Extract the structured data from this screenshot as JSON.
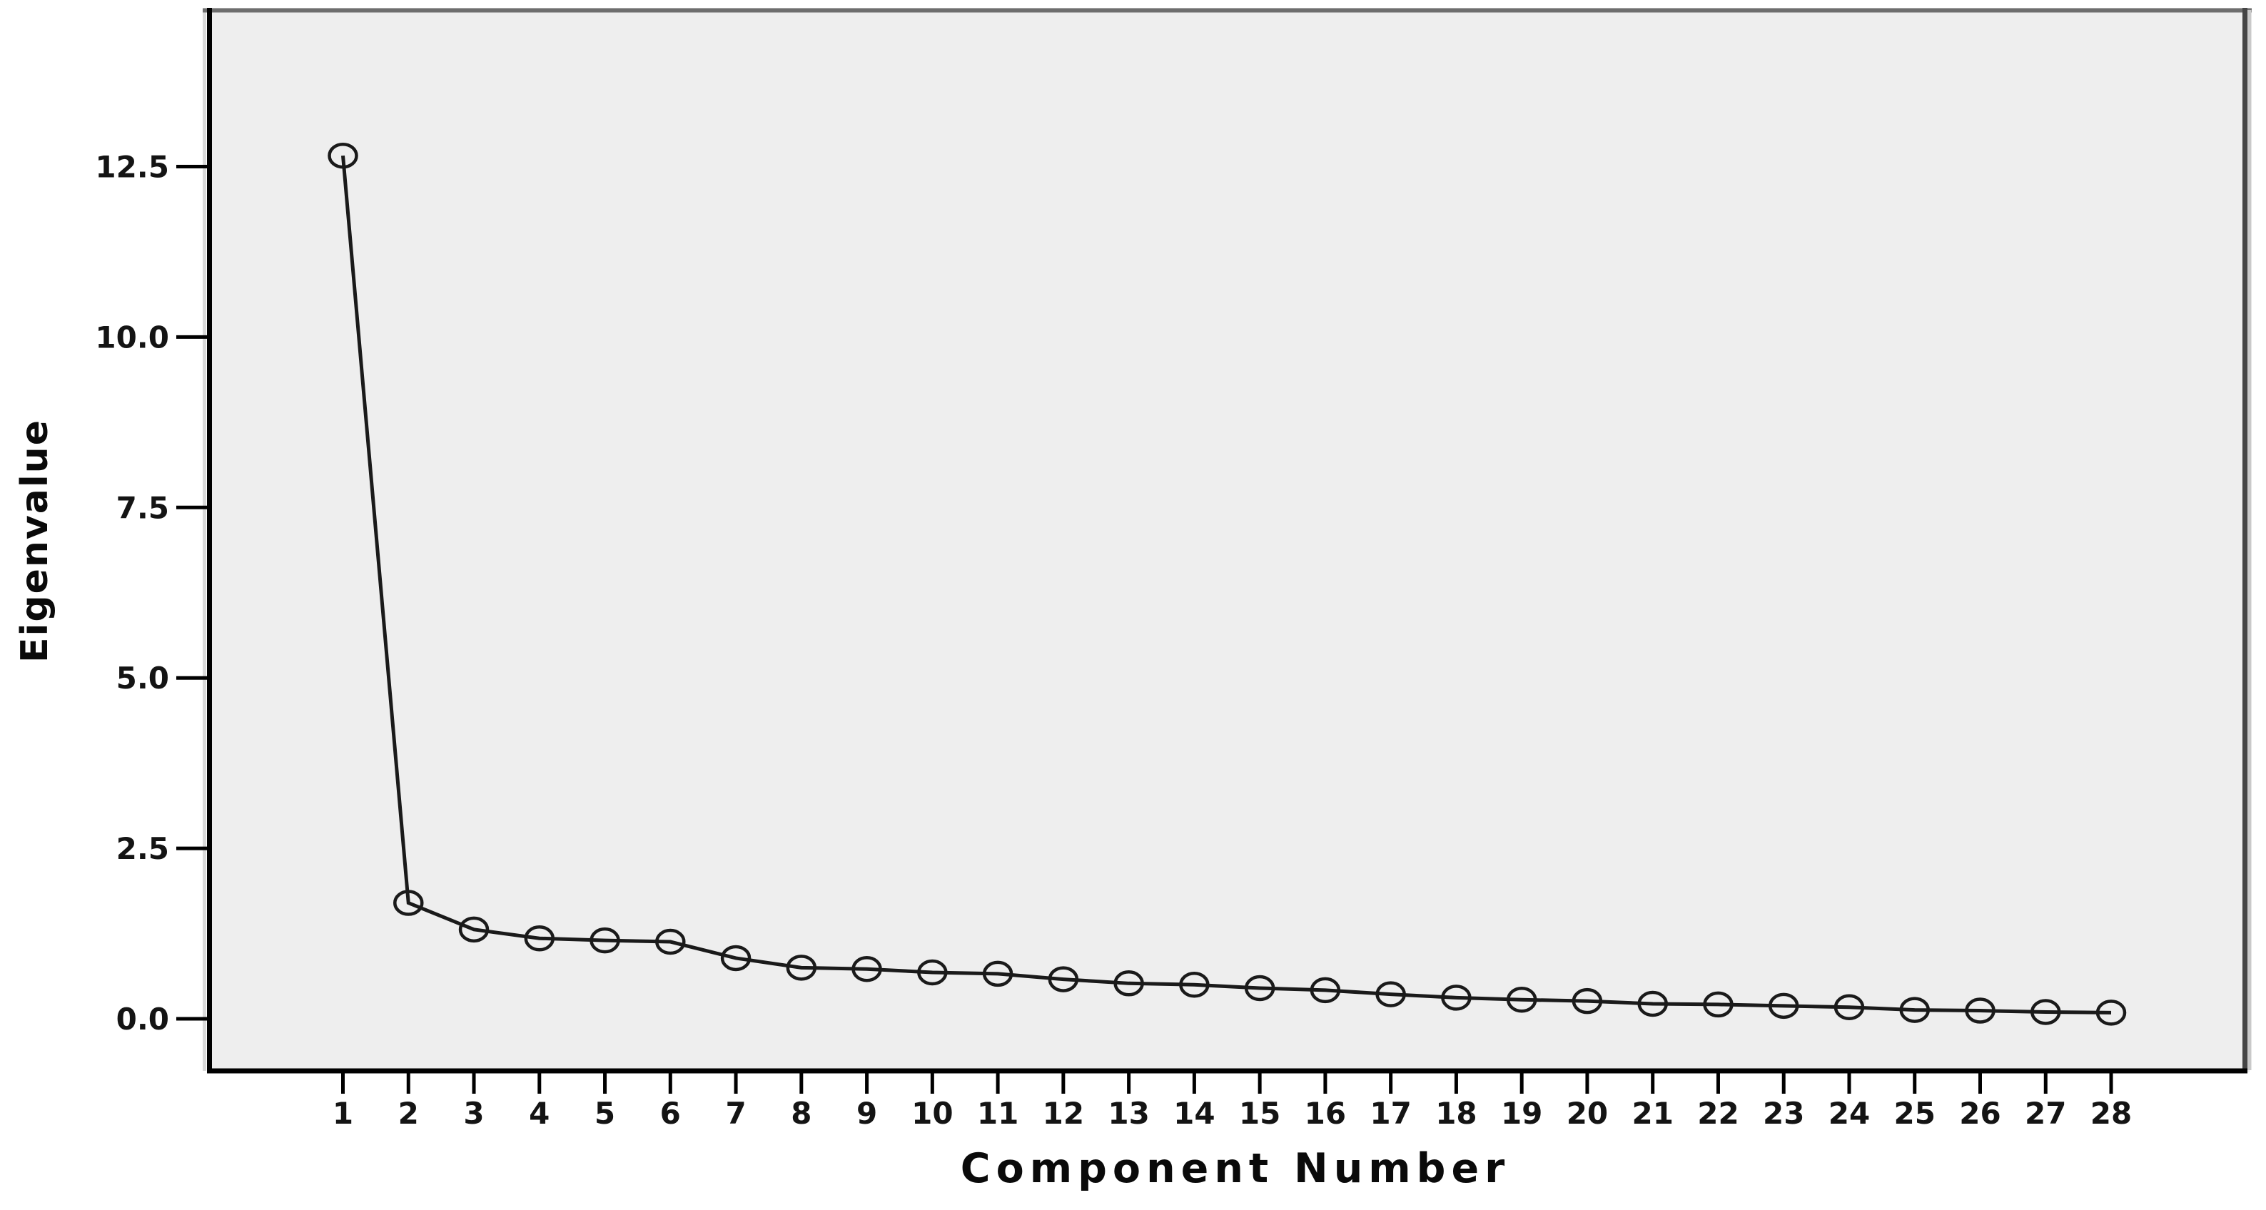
{
  "page": {
    "background_color": "#ffffff",
    "description": "Scree plot of eigenvalues by component number"
  },
  "chart_data": {
    "type": "line",
    "title": "",
    "xlabel": "Component Number",
    "ylabel": "Eigenvalue",
    "grid": false,
    "legend": "none",
    "marker": "open-circle",
    "series": [
      {
        "name": "Eigenvalue",
        "x": [
          1,
          2,
          3,
          4,
          5,
          6,
          7,
          8,
          9,
          10,
          11,
          12,
          13,
          14,
          15,
          16,
          17,
          18,
          19,
          20,
          21,
          22,
          23,
          24,
          25,
          26,
          27,
          28
        ],
        "values": [
          12.66,
          1.7,
          1.31,
          1.18,
          1.15,
          1.13,
          0.89,
          0.75,
          0.73,
          0.68,
          0.66,
          0.58,
          0.52,
          0.5,
          0.45,
          0.42,
          0.36,
          0.31,
          0.28,
          0.26,
          0.22,
          0.21,
          0.19,
          0.17,
          0.13,
          0.12,
          0.1,
          0.09
        ]
      }
    ],
    "x_tick_labels": [
      "1",
      "2",
      "3",
      "4",
      "5",
      "6",
      "7",
      "8",
      "9",
      "10",
      "11",
      "12",
      "13",
      "14",
      "15",
      "16",
      "17",
      "18",
      "19",
      "20",
      "21",
      "22",
      "23",
      "24",
      "25",
      "26",
      "27",
      "28"
    ],
    "y_tick_labels": [
      "0.0",
      "2.5",
      "5.0",
      "7.5",
      "10.0",
      "12.5"
    ],
    "y_tick_values": [
      0,
      2.5,
      5,
      7.5,
      10,
      12.5
    ],
    "ylim": [
      -0.77,
      14.79
    ],
    "xlim_components": [
      -1.07,
      30.07
    ],
    "colors": {
      "plot_background": "#eeeeee",
      "line": "#1a1a1a",
      "marker_stroke": "#1a1a1a",
      "axis_left_bottom": "#000000",
      "axis_top": "#6e6e6e",
      "axis_right": "#454545",
      "axis_right_halo": "#c9c9c9",
      "axis_left_halo": "#d9d9d9",
      "text": "#141414"
    }
  }
}
